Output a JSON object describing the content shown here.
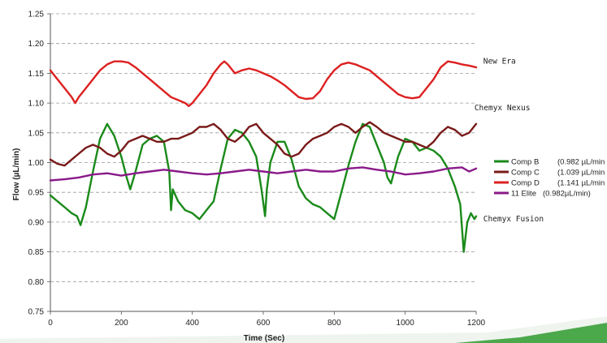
{
  "chart_data": {
    "type": "line",
    "xlabel": "Time (Sec)",
    "ylabel": "Flow (µL/min)",
    "xlim": [
      0,
      1200
    ],
    "ylim": [
      0.75,
      1.25
    ],
    "xticks": [
      "0",
      "200",
      "400",
      "600",
      "800",
      "1000",
      "1200"
    ],
    "yticks": [
      "0.75",
      "0.80",
      "0.85",
      "0.90",
      "0.95",
      "1.00",
      "1.05",
      "1.10",
      "1.15",
      "1.20",
      "1.25"
    ],
    "grid": "horizontal dashed",
    "legend_position": "right",
    "series": [
      {
        "legend": "Comp B",
        "legend_value": "(0.982 µL/min",
        "color": "#1a8a1a",
        "x": [
          0,
          20,
          40,
          60,
          75,
          85,
          100,
          120,
          140,
          160,
          180,
          200,
          215,
          225,
          240,
          260,
          280,
          300,
          320,
          335,
          340,
          345,
          360,
          380,
          400,
          420,
          440,
          460,
          480,
          500,
          520,
          540,
          560,
          580,
          595,
          605,
          610,
          620,
          640,
          660,
          680,
          700,
          720,
          740,
          760,
          780,
          800,
          820,
          840,
          860,
          880,
          900,
          920,
          940,
          950,
          960,
          980,
          1000,
          1020,
          1040,
          1060,
          1080,
          1100,
          1120,
          1140,
          1155,
          1165,
          1175,
          1185,
          1195,
          1200
        ],
        "y": [
          0.945,
          0.935,
          0.925,
          0.915,
          0.91,
          0.895,
          0.925,
          0.985,
          1.04,
          1.065,
          1.045,
          1.01,
          0.975,
          0.955,
          0.985,
          1.03,
          1.04,
          1.045,
          1.035,
          0.985,
          0.92,
          0.955,
          0.935,
          0.92,
          0.915,
          0.905,
          0.92,
          0.935,
          0.99,
          1.04,
          1.055,
          1.05,
          1.035,
          1.01,
          0.955,
          0.91,
          0.955,
          1.0,
          1.035,
          1.035,
          1.005,
          0.96,
          0.94,
          0.93,
          0.925,
          0.915,
          0.905,
          0.95,
          0.995,
          1.035,
          1.065,
          1.06,
          1.03,
          1.0,
          0.975,
          0.965,
          1.01,
          1.04,
          1.035,
          1.02,
          1.025,
          1.02,
          1.01,
          0.99,
          0.96,
          0.93,
          0.85,
          0.9,
          0.915,
          0.905,
          0.91
        ]
      },
      {
        "legend": "Comp C",
        "legend_value": "(1.039 µL/min",
        "color": "#7a1a1a",
        "x": [
          0,
          20,
          40,
          60,
          80,
          100,
          120,
          140,
          160,
          180,
          200,
          220,
          240,
          260,
          280,
          300,
          320,
          340,
          360,
          380,
          400,
          420,
          440,
          460,
          480,
          500,
          520,
          540,
          560,
          580,
          600,
          620,
          640,
          660,
          680,
          700,
          720,
          740,
          760,
          780,
          800,
          820,
          840,
          860,
          880,
          900,
          920,
          940,
          960,
          980,
          1000,
          1020,
          1040,
          1060,
          1080,
          1100,
          1120,
          1140,
          1160,
          1180,
          1200
        ],
        "y": [
          1.005,
          0.998,
          0.995,
          1.005,
          1.015,
          1.025,
          1.03,
          1.025,
          1.015,
          1.01,
          1.02,
          1.035,
          1.04,
          1.045,
          1.04,
          1.035,
          1.035,
          1.04,
          1.04,
          1.045,
          1.05,
          1.06,
          1.06,
          1.065,
          1.055,
          1.04,
          1.035,
          1.045,
          1.06,
          1.065,
          1.05,
          1.04,
          1.03,
          1.015,
          1.01,
          1.015,
          1.03,
          1.04,
          1.045,
          1.05,
          1.06,
          1.065,
          1.06,
          1.05,
          1.06,
          1.068,
          1.06,
          1.05,
          1.045,
          1.04,
          1.035,
          1.035,
          1.03,
          1.025,
          1.035,
          1.05,
          1.06,
          1.055,
          1.045,
          1.05,
          1.065
        ]
      },
      {
        "legend": "Comp D",
        "legend_value": "(1.141 µL/min",
        "color": "#dd2020",
        "x": [
          0,
          20,
          40,
          60,
          70,
          80,
          100,
          120,
          140,
          160,
          180,
          200,
          220,
          240,
          260,
          280,
          300,
          320,
          340,
          360,
          380,
          390,
          400,
          420,
          440,
          460,
          480,
          490,
          500,
          520,
          540,
          560,
          580,
          600,
          620,
          640,
          660,
          680,
          700,
          720,
          740,
          760,
          780,
          800,
          820,
          840,
          860,
          880,
          900,
          920,
          940,
          960,
          980,
          1000,
          1020,
          1040,
          1060,
          1080,
          1100,
          1120,
          1140,
          1160,
          1180,
          1200
        ],
        "y": [
          1.155,
          1.14,
          1.125,
          1.11,
          1.1,
          1.11,
          1.125,
          1.14,
          1.155,
          1.165,
          1.17,
          1.17,
          1.168,
          1.16,
          1.15,
          1.14,
          1.13,
          1.12,
          1.11,
          1.105,
          1.1,
          1.095,
          1.1,
          1.115,
          1.13,
          1.15,
          1.165,
          1.17,
          1.165,
          1.15,
          1.155,
          1.158,
          1.155,
          1.15,
          1.145,
          1.138,
          1.13,
          1.12,
          1.11,
          1.107,
          1.108,
          1.12,
          1.14,
          1.155,
          1.165,
          1.168,
          1.165,
          1.16,
          1.155,
          1.145,
          1.135,
          1.125,
          1.115,
          1.11,
          1.108,
          1.11,
          1.125,
          1.14,
          1.16,
          1.17,
          1.168,
          1.165,
          1.163,
          1.16
        ]
      },
      {
        "legend": "11 Elite",
        "legend_value": "(0.982µL/min)",
        "color": "#8a1a8a",
        "x": [
          0,
          40,
          80,
          120,
          160,
          200,
          240,
          280,
          320,
          360,
          400,
          440,
          480,
          520,
          560,
          600,
          640,
          680,
          720,
          760,
          800,
          840,
          880,
          920,
          960,
          1000,
          1040,
          1080,
          1120,
          1160,
          1180,
          1200
        ],
        "y": [
          0.97,
          0.972,
          0.975,
          0.98,
          0.982,
          0.978,
          0.982,
          0.985,
          0.988,
          0.985,
          0.982,
          0.98,
          0.982,
          0.985,
          0.988,
          0.985,
          0.982,
          0.985,
          0.988,
          0.985,
          0.985,
          0.99,
          0.992,
          0.988,
          0.985,
          0.98,
          0.982,
          0.985,
          0.99,
          0.992,
          0.985,
          0.99
        ]
      }
    ],
    "annotations": [
      {
        "text": "New Era",
        "x": 1220,
        "y": 1.17
      },
      {
        "text": "Chemyx  Nexus",
        "x": 1195,
        "y": 1.092
      },
      {
        "text": "Chemyx  Fusion",
        "x": 1220,
        "y": 0.905
      }
    ]
  }
}
